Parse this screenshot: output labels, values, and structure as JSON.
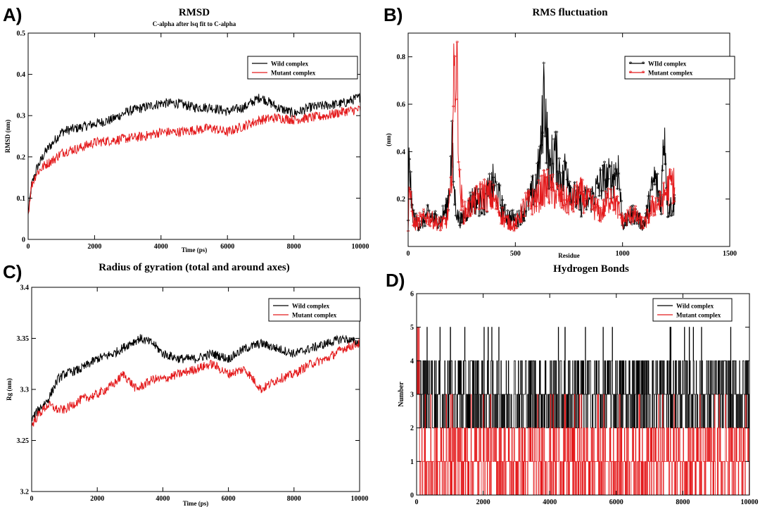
{
  "chart_data": [
    {
      "id": "A",
      "type": "line",
      "panel_label": "A)",
      "title": "RMSD",
      "subtitle": "C-alpha after lsq fit to C-alpha",
      "xlabel": "Time (ps)",
      "ylabel": "RMSD (nm)",
      "xlim": [
        0,
        10000
      ],
      "ylim": [
        0,
        0.5
      ],
      "xticks": [
        0,
        2000,
        4000,
        6000,
        8000,
        10000
      ],
      "yticks": [
        0,
        0.1,
        0.2,
        0.3,
        0.4,
        0.5
      ],
      "legend_position": "top-right",
      "series": [
        {
          "name": "Wild complex",
          "color": "#000000",
          "x": [
            0,
            100,
            250,
            500,
            800,
            1000,
            1200,
            1500,
            2000,
            2500,
            3000,
            3500,
            4000,
            4500,
            5000,
            5500,
            6000,
            6500,
            7000,
            7500,
            8000,
            8500,
            9000,
            9500,
            10000
          ],
          "y": [
            0.06,
            0.13,
            0.17,
            0.21,
            0.24,
            0.26,
            0.265,
            0.27,
            0.28,
            0.29,
            0.31,
            0.32,
            0.33,
            0.33,
            0.32,
            0.32,
            0.31,
            0.32,
            0.345,
            0.32,
            0.305,
            0.32,
            0.325,
            0.33,
            0.345
          ]
        },
        {
          "name": "Mutant complex",
          "color": "#e41a1c",
          "x": [
            0,
            100,
            250,
            500,
            800,
            1000,
            1200,
            1500,
            2000,
            2500,
            3000,
            3500,
            4000,
            4500,
            5000,
            5500,
            6000,
            6500,
            7000,
            7500,
            8000,
            8500,
            9000,
            9500,
            10000
          ],
          "y": [
            0.06,
            0.13,
            0.16,
            0.18,
            0.195,
            0.21,
            0.215,
            0.22,
            0.235,
            0.24,
            0.245,
            0.25,
            0.26,
            0.26,
            0.265,
            0.27,
            0.26,
            0.275,
            0.29,
            0.295,
            0.29,
            0.295,
            0.3,
            0.31,
            0.315
          ]
        }
      ]
    },
    {
      "id": "B",
      "type": "line",
      "panel_label": "B)",
      "title": "RMS fluctuation",
      "xlabel": "Residue",
      "ylabel": "(nm)",
      "xlim": [
        0,
        1500
      ],
      "ylim": [
        0,
        0.9
      ],
      "xticks": [
        0,
        500,
        1000,
        1500
      ],
      "yticks": [
        0.2,
        0.4,
        0.6,
        0.8
      ],
      "legend_position": "top-right",
      "series": [
        {
          "name": "WIld complex",
          "color": "#000000",
          "marker": "asterisk",
          "x": [
            0,
            5,
            15,
            30,
            60,
            90,
            120,
            150,
            180,
            195,
            205,
            215,
            230,
            250,
            300,
            350,
            400,
            450,
            500,
            550,
            600,
            620,
            635,
            645,
            660,
            680,
            720,
            740,
            760,
            800,
            850,
            900,
            950,
            980,
            1000,
            1050,
            1100,
            1150,
            1180,
            1195,
            1210,
            1240
          ],
          "y": [
            0.1,
            0.45,
            0.2,
            0.12,
            0.1,
            0.15,
            0.13,
            0.12,
            0.18,
            0.3,
            0.45,
            0.25,
            0.14,
            0.12,
            0.22,
            0.2,
            0.3,
            0.15,
            0.12,
            0.18,
            0.3,
            0.45,
            0.77,
            0.55,
            0.35,
            0.45,
            0.3,
            0.4,
            0.25,
            0.2,
            0.22,
            0.3,
            0.32,
            0.37,
            0.1,
            0.15,
            0.1,
            0.32,
            0.2,
            0.59,
            0.18,
            0.2
          ]
        },
        {
          "name": "Mutant complex",
          "color": "#e41a1c",
          "marker": "asterisk",
          "x": [
            0,
            5,
            15,
            30,
            60,
            90,
            120,
            150,
            180,
            200,
            215,
            225,
            232,
            240,
            260,
            300,
            350,
            400,
            450,
            500,
            550,
            600,
            640,
            680,
            720,
            760,
            800,
            850,
            900,
            950,
            1000,
            1050,
            1100,
            1150,
            1180,
            1200,
            1230,
            1245
          ],
          "y": [
            0.1,
            0.3,
            0.18,
            0.1,
            0.12,
            0.14,
            0.12,
            0.1,
            0.12,
            0.25,
            0.8,
            0.86,
            0.7,
            0.28,
            0.15,
            0.2,
            0.25,
            0.22,
            0.12,
            0.1,
            0.2,
            0.22,
            0.28,
            0.25,
            0.22,
            0.2,
            0.25,
            0.2,
            0.15,
            0.25,
            0.12,
            0.15,
            0.1,
            0.2,
            0.2,
            0.25,
            0.3,
            0.28
          ]
        }
      ]
    },
    {
      "id": "C",
      "type": "line",
      "panel_label": "C)",
      "title": "Radius of gyration (total and around axes)",
      "xlabel": "Time (ps)",
      "ylabel": "Rg (nm)",
      "xlim": [
        0,
        10000
      ],
      "ylim": [
        3.2,
        3.4
      ],
      "xticks": [
        0,
        2000,
        4000,
        6000,
        8000,
        10000
      ],
      "yticks": [
        3.2,
        3.25,
        3.3,
        3.35,
        3.4
      ],
      "legend_position": "top-right",
      "series": [
        {
          "name": "Wild complex",
          "color": "#000000",
          "x": [
            0,
            200,
            500,
            800,
            1000,
            1500,
            2000,
            2500,
            3000,
            3300,
            3700,
            4000,
            4500,
            5000,
            5500,
            6000,
            6500,
            7000,
            7500,
            8000,
            8500,
            9000,
            9500,
            10000
          ],
          "y": [
            3.27,
            3.28,
            3.29,
            3.31,
            3.315,
            3.32,
            3.33,
            3.335,
            3.345,
            3.35,
            3.345,
            3.335,
            3.33,
            3.33,
            3.335,
            3.33,
            3.34,
            3.345,
            3.34,
            3.335,
            3.34,
            3.345,
            3.35,
            3.345
          ]
        },
        {
          "name": "Mutant complex",
          "color": "#e41a1c",
          "x": [
            0,
            200,
            500,
            800,
            1000,
            1500,
            2000,
            2500,
            2800,
            3200,
            3700,
            4000,
            4500,
            5000,
            5500,
            6000,
            6500,
            7000,
            7500,
            8000,
            8500,
            9000,
            9500,
            10000
          ],
          "y": [
            3.265,
            3.275,
            3.285,
            3.28,
            3.28,
            3.29,
            3.295,
            3.305,
            3.315,
            3.3,
            3.31,
            3.31,
            3.315,
            3.32,
            3.325,
            3.315,
            3.32,
            3.3,
            3.31,
            3.315,
            3.325,
            3.33,
            3.34,
            3.345
          ]
        }
      ]
    },
    {
      "id": "D",
      "type": "line",
      "panel_label": "D)",
      "title": "Hydrogen Bonds",
      "xlabel": "",
      "ylabel": "Number",
      "xlim": [
        0,
        10000
      ],
      "ylim": [
        0,
        6
      ],
      "xticks": [
        0,
        2000,
        4000,
        6000,
        8000,
        10000
      ],
      "yticks": [
        0,
        1,
        2,
        3,
        4,
        5,
        6
      ],
      "legend_position": "top-right",
      "series": [
        {
          "name": "Wild complex",
          "color": "#000000",
          "x": [
            0,
            100,
            300,
            500,
            700,
            900,
            1000,
            1500,
            2000,
            2500,
            3000,
            3500,
            4000,
            4500,
            5000,
            5500,
            6000,
            6500,
            7000,
            7500,
            8000,
            8500,
            9000,
            9500,
            10000
          ],
          "y": [
            2,
            3,
            4,
            5,
            3,
            4,
            5,
            3,
            5,
            3,
            4,
            2,
            3,
            4,
            3,
            2,
            3,
            5,
            2,
            4,
            5,
            3,
            4,
            2,
            3
          ]
        },
        {
          "name": "Mutant complex",
          "color": "#e41a1c",
          "x": [
            0,
            50,
            100,
            300,
            500,
            800,
            1000,
            1500,
            2000,
            2500,
            3000,
            3500,
            4000,
            4500,
            5000,
            5500,
            6000,
            6500,
            7000,
            7500,
            8000,
            8500,
            9000,
            9500,
            10000
          ],
          "y": [
            2,
            5,
            3,
            1,
            2,
            0,
            1,
            2,
            1,
            0,
            2,
            1,
            1,
            0,
            2,
            1,
            0,
            1,
            2,
            1,
            0,
            1,
            0,
            1,
            1
          ]
        }
      ]
    }
  ]
}
